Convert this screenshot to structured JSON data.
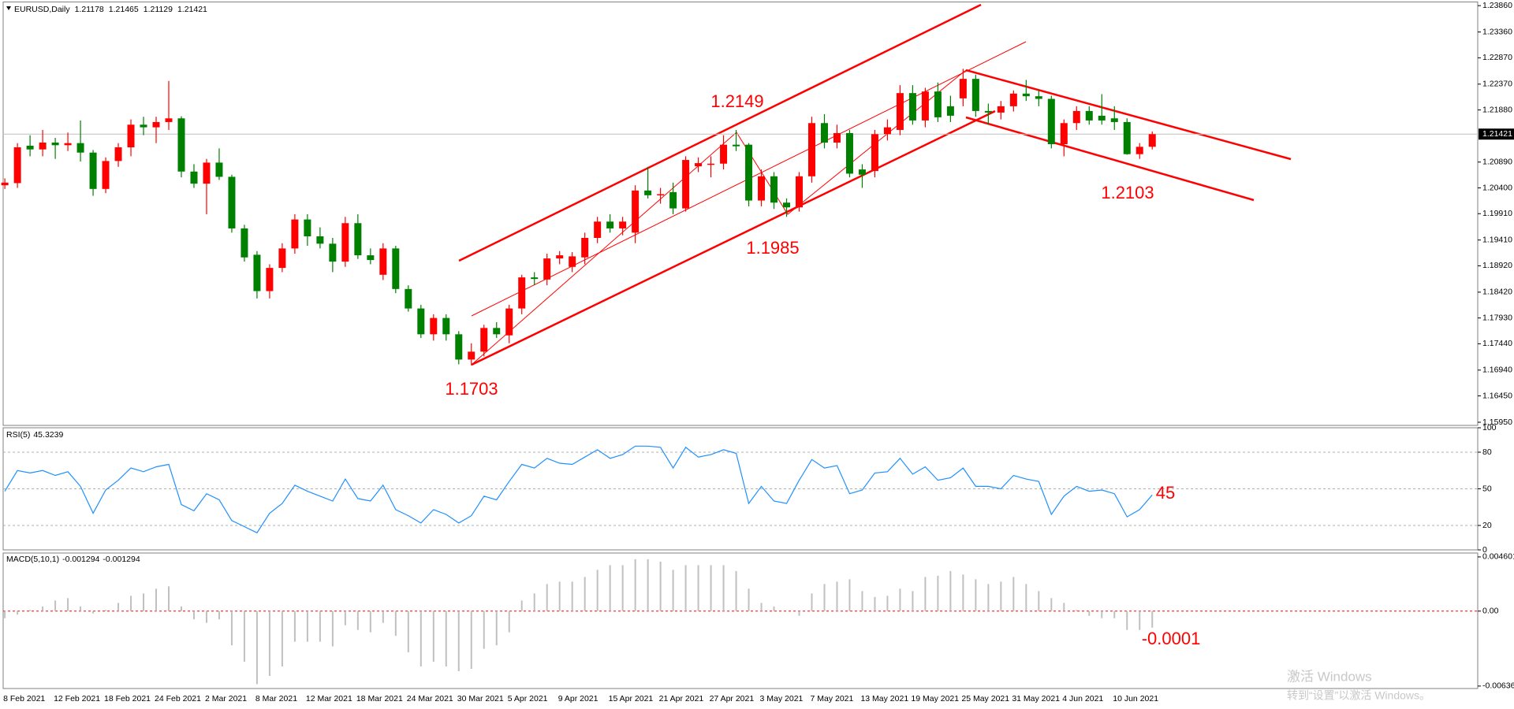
{
  "chart_data": [
    {
      "type": "candlestick",
      "title": "EURUSD,Daily",
      "header_values": [
        1.21178,
        1.21465,
        1.21129,
        1.21421
      ],
      "categories": [
        "8 Feb 2021",
        null,
        null,
        null,
        "12 Feb 2021",
        null,
        null,
        null,
        "18 Feb 2021",
        null,
        null,
        null,
        "24 Feb 2021",
        null,
        null,
        null,
        "2 Mar 2021",
        null,
        null,
        null,
        "8 Mar 2021",
        null,
        null,
        null,
        "12 Mar 2021",
        null,
        null,
        null,
        "18 Mar 2021",
        null,
        null,
        null,
        "24 Mar 2021",
        null,
        null,
        null,
        "30 Mar 2021",
        null,
        null,
        null,
        "5 Apr 2021",
        null,
        null,
        null,
        "9 Apr 2021",
        null,
        null,
        null,
        "15 Apr 2021",
        null,
        null,
        null,
        "21 Apr 2021",
        null,
        null,
        null,
        "27 Apr 2021",
        null,
        null,
        null,
        "3 May 2021",
        null,
        null,
        null,
        "7 May 2021",
        null,
        null,
        null,
        "13 May 2021",
        null,
        null,
        null,
        "19 May 2021",
        null,
        null,
        null,
        "25 May 2021",
        null,
        null,
        null,
        "31 May 2021",
        null,
        null,
        null,
        "4 Jun 2021",
        null,
        null,
        null,
        "10 Jun 2021",
        null,
        null,
        null
      ],
      "open": [
        1.2045,
        1.2049,
        1.212,
        1.2113,
        1.2126,
        1.2121,
        1.2125,
        1.2107,
        1.2038,
        1.2091,
        1.2117,
        1.216,
        1.2155,
        1.2165,
        1.2172,
        1.2071,
        1.2048,
        1.2088,
        1.2061,
        1.1963,
        1.1913,
        1.1844,
        1.1888,
        1.1925,
        1.198,
        1.1948,
        1.1934,
        1.19,
        1.1973,
        1.1912,
        1.1875,
        1.1925,
        1.1848,
        1.1811,
        1.1762,
        1.1793,
        1.1762,
        1.1714,
        1.1729,
        1.1774,
        1.176,
        1.1811,
        1.187,
        1.1866,
        1.1906,
        1.189,
        1.1908,
        1.1945,
        1.1976,
        1.1963,
        1.1955,
        1.2035,
        1.2026,
        1.2032,
        1.2001,
        1.2081,
        1.2084,
        1.2086,
        1.2122,
        1.2122,
        1.2016,
        1.2062,
        1.2012,
        1.2003,
        1.2062,
        1.2163,
        1.2126,
        1.2144,
        1.2075,
        1.2072,
        1.2142,
        1.215,
        1.222,
        1.2168,
        1.2223,
        1.2195,
        1.221,
        1.2247,
        1.2186,
        1.2183,
        1.2195,
        1.2219,
        1.2214,
        1.2209,
        1.2123,
        1.2163,
        1.2186,
        1.2177,
        1.2172,
        1.2165,
        1.2104,
        1.2118
      ],
      "high": [
        1.2058,
        1.2125,
        1.214,
        1.215,
        1.2135,
        1.2145,
        1.2168,
        1.2112,
        1.2098,
        1.2125,
        1.217,
        1.2175,
        1.2175,
        1.2243,
        1.2176,
        1.2085,
        1.2095,
        1.2115,
        1.2065,
        1.197,
        1.192,
        1.1895,
        1.1935,
        1.199,
        1.199,
        1.1965,
        1.1945,
        1.1985,
        1.199,
        1.1925,
        1.1935,
        1.193,
        1.1855,
        1.1818,
        1.18,
        1.18,
        1.1768,
        1.1745,
        1.178,
        1.1785,
        1.1818,
        1.1875,
        1.188,
        1.1915,
        1.192,
        1.1918,
        1.1955,
        1.1985,
        1.199,
        1.1985,
        1.2045,
        1.208,
        1.204,
        1.205,
        1.21,
        1.2098,
        1.21,
        1.214,
        1.215,
        1.2125,
        1.2075,
        1.207,
        1.202,
        1.207,
        1.2175,
        1.218,
        1.216,
        1.215,
        1.2085,
        1.215,
        1.217,
        1.2235,
        1.2235,
        1.223,
        1.224,
        1.2215,
        1.2266,
        1.2255,
        1.22,
        1.2205,
        1.2225,
        1.2245,
        1.2225,
        1.2215,
        1.217,
        1.2195,
        1.2195,
        1.2218,
        1.2195,
        1.2172,
        1.2125,
        1.2147
      ],
      "low": [
        1.2038,
        1.204,
        1.21,
        1.21,
        1.2095,
        1.211,
        1.209,
        1.2025,
        1.203,
        1.208,
        1.21,
        1.214,
        1.2125,
        1.215,
        1.206,
        1.204,
        1.199,
        1.2055,
        1.1955,
        1.19,
        1.183,
        1.183,
        1.188,
        1.1915,
        1.193,
        1.1925,
        1.188,
        1.189,
        1.1905,
        1.1895,
        1.1865,
        1.184,
        1.1805,
        1.1755,
        1.175,
        1.175,
        1.1705,
        1.1703,
        1.172,
        1.1755,
        1.1745,
        1.18,
        1.1855,
        1.1855,
        1.1895,
        1.188,
        1.1895,
        1.1935,
        1.1955,
        1.195,
        1.1935,
        1.202,
        1.201,
        1.199,
        1.1995,
        1.207,
        1.206,
        1.2075,
        1.211,
        1.2005,
        1.2005,
        1.2,
        1.1985,
        1.1995,
        1.205,
        1.2115,
        1.2115,
        1.206,
        1.204,
        1.206,
        1.213,
        1.214,
        1.216,
        1.2155,
        1.2165,
        1.2165,
        1.2195,
        1.2175,
        1.216,
        1.217,
        1.2185,
        1.2205,
        1.2195,
        1.2115,
        1.21,
        1.215,
        1.216,
        1.216,
        1.215,
        1.2103,
        1.2095,
        1.2113
      ],
      "close": [
        1.205,
        1.2117,
        1.2113,
        1.2126,
        1.2121,
        1.2125,
        1.2107,
        1.2038,
        1.2091,
        1.2117,
        1.216,
        1.2155,
        1.2165,
        1.2172,
        1.2071,
        1.2048,
        1.2088,
        1.2061,
        1.1963,
        1.1908,
        1.1844,
        1.1888,
        1.1925,
        1.198,
        1.1948,
        1.1934,
        1.19,
        1.1973,
        1.1912,
        1.1903,
        1.1925,
        1.1848,
        1.1811,
        1.1762,
        1.1793,
        1.1762,
        1.1714,
        1.1729,
        1.1774,
        1.1762,
        1.1811,
        1.187,
        1.1867,
        1.1906,
        1.1912,
        1.191,
        1.1945,
        1.1976,
        1.1963,
        1.1976,
        1.2035,
        1.2026,
        1.2028,
        1.2001,
        1.2093,
        1.2087,
        1.2086,
        1.2122,
        1.2119,
        1.2016,
        1.2062,
        1.2012,
        1.2003,
        1.2062,
        1.2163,
        1.2126,
        1.2144,
        1.2067,
        1.2065,
        1.2142,
        1.2155,
        1.222,
        1.2168,
        1.2223,
        1.2174,
        1.2177,
        1.2247,
        1.2186,
        1.2183,
        1.2195,
        1.2219,
        1.2214,
        1.2209,
        1.2123,
        1.2163,
        1.2186,
        1.2168,
        1.2168,
        1.2165,
        1.2104,
        1.2118,
        1.2142
      ],
      "up_color": "#ff0000",
      "down_color": "#008000",
      "ylim": [
        1.1589,
        1.2393
      ],
      "yticks": [
        {
          "value": 1.2386,
          "label": "1.23860"
        },
        {
          "value": 1.2336,
          "label": "1.23360"
        },
        {
          "value": 1.2287,
          "label": "1.22870"
        },
        {
          "value": 1.2237,
          "label": "1.22370"
        },
        {
          "value": 1.2188,
          "label": "1.21880"
        },
        {
          "value": 1.2089,
          "label": "1.20890"
        },
        {
          "value": 1.204,
          "label": "1.20400"
        },
        {
          "value": 1.1991,
          "label": "1.19910"
        },
        {
          "value": 1.1941,
          "label": "1.19410"
        },
        {
          "value": 1.1892,
          "label": "1.18920"
        },
        {
          "value": 1.1842,
          "label": "1.18420"
        },
        {
          "value": 1.1793,
          "label": "1.17930"
        },
        {
          "value": 1.1744,
          "label": "1.17440"
        },
        {
          "value": 1.1694,
          "label": "1.16940"
        },
        {
          "value": 1.1645,
          "label": "1.16450"
        },
        {
          "value": 1.1595,
          "label": "1.15950"
        }
      ],
      "last_price": 1.21421,
      "annotations": [
        "1.2149",
        "1.1985",
        "1.2103",
        "1.1703"
      ]
    },
    {
      "type": "line",
      "title": "RSI(5)",
      "current": 45.3239,
      "color": "#1e90ff",
      "values": [
        48,
        65,
        63,
        65,
        61,
        64,
        52,
        30,
        49,
        57,
        67,
        64,
        68,
        70,
        37,
        32,
        46,
        41,
        24,
        19,
        14,
        30,
        38,
        53,
        48,
        44,
        40,
        58,
        42,
        40,
        53,
        33,
        28,
        22,
        33,
        29,
        22,
        28,
        44,
        41,
        56,
        70,
        67,
        75,
        71,
        70,
        76,
        82,
        75,
        78,
        85,
        85,
        84,
        67,
        84,
        76,
        78,
        82,
        79,
        38,
        52,
        40,
        38,
        57,
        74,
        67,
        69,
        46,
        49,
        63,
        64,
        75,
        62,
        68,
        57,
        59,
        67,
        52,
        52,
        50,
        61,
        58,
        56,
        29,
        44,
        52,
        48,
        49,
        46,
        27,
        33,
        45
      ],
      "ylim": [
        0,
        100
      ],
      "yticks": [
        0,
        20,
        50,
        80,
        100
      ],
      "annotations": [
        "45"
      ]
    },
    {
      "type": "bar",
      "title": "MACD(5,10,1)",
      "current": [
        -0.001294,
        -0.001294
      ],
      "color": "#c0c0c0",
      "zero_line_color": "#ff0000",
      "values": [
        -0.0006,
        -0.0003,
        0.0001,
        0.0004,
        0.0009,
        0.0011,
        0.0004,
        -0.0002,
        0.0001,
        0.0007,
        0.0013,
        0.0015,
        0.0019,
        0.0021,
        0.0004,
        -0.0007,
        -0.001,
        -0.0007,
        -0.0029,
        -0.0043,
        -0.0062,
        -0.0055,
        -0.0047,
        -0.0026,
        -0.0026,
        -0.0026,
        -0.003,
        -0.0012,
        -0.0016,
        -0.0018,
        -0.001,
        -0.0021,
        -0.0035,
        -0.0047,
        -0.0043,
        -0.0047,
        -0.0051,
        -0.0049,
        -0.0032,
        -0.0029,
        -0.0018,
        0.0009,
        0.0015,
        0.0023,
        0.0025,
        0.0025,
        0.0029,
        0.0035,
        0.0039,
        0.0039,
        0.0044,
        0.0044,
        0.0042,
        0.0035,
        0.0039,
        0.0039,
        0.0039,
        0.0039,
        0.0034,
        0.0019,
        0.0007,
        0.0004,
        0,
        -0.0004,
        0.0015,
        0.0023,
        0.0025,
        0.0027,
        0.0017,
        0.0012,
        0.0013,
        0.0019,
        0.0017,
        0.0029,
        0.003,
        0.0034,
        0.0031,
        0.0027,
        0.0023,
        0.0025,
        0.0029,
        0.0023,
        0.0017,
        0.0011,
        0.0007,
        0.0001,
        -0.0004,
        -0.0006,
        -0.0006,
        -0.0016,
        -0.0016,
        -0.0014
      ],
      "ylim": [
        -0.00657,
        0.00493
      ],
      "yticks": [
        -0.006361,
        {
          "value": 0,
          "label": "0.00"
        },
        0.004601
      ],
      "annotations": [
        "-0.0001"
      ]
    }
  ],
  "watermark": {
    "line1": "激活 Windows",
    "line2": "转到“设置”以激活 Windows。"
  }
}
